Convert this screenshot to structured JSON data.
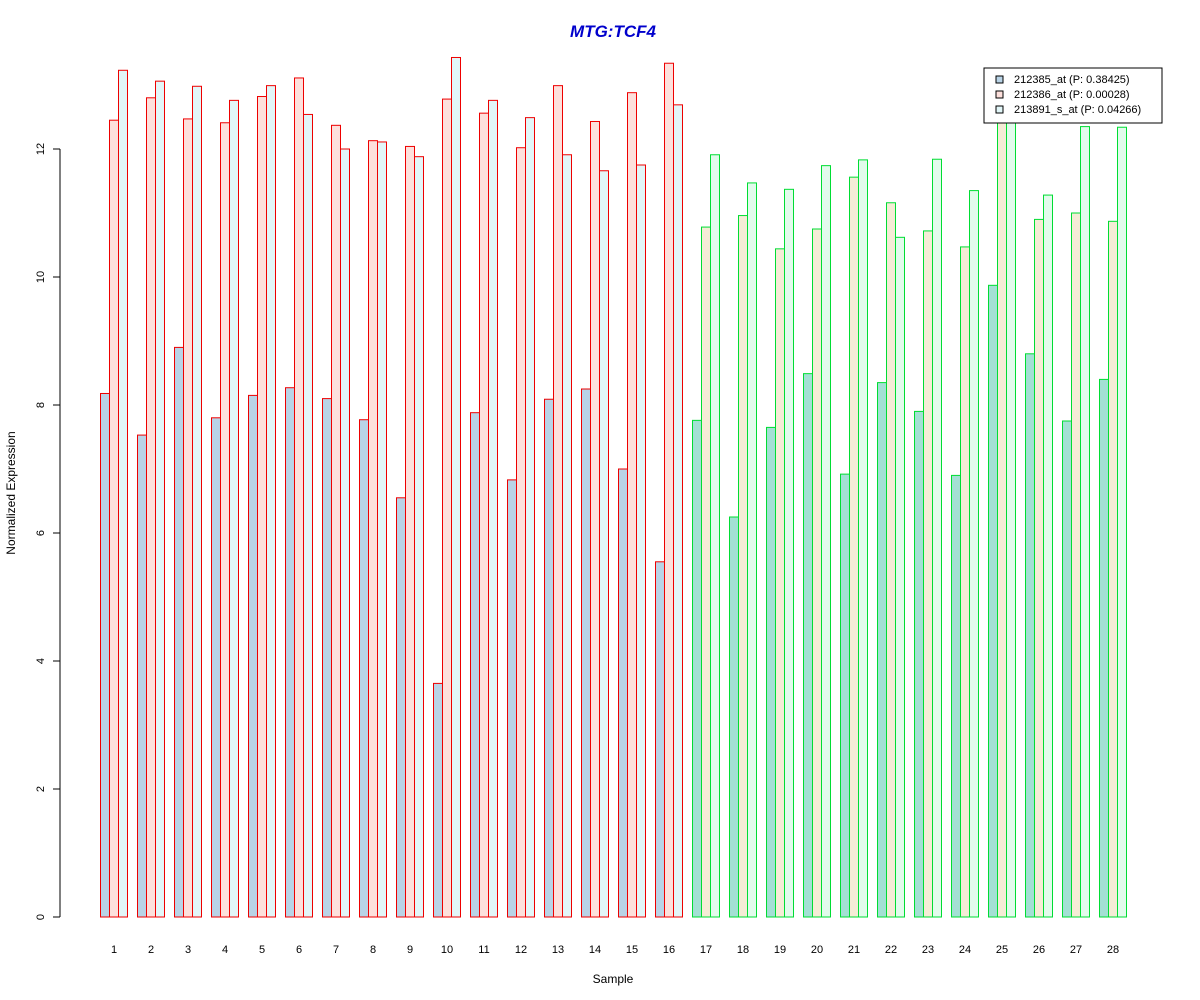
{
  "chart_data": {
    "type": "bar",
    "title": "MTG:TCF4",
    "xlabel": "Sample",
    "ylabel": "Normalized Expression",
    "ylim": [
      0,
      14
    ],
    "yticks": [
      0,
      2,
      4,
      6,
      8,
      10,
      12
    ],
    "grid": false,
    "legend_position": "top-right",
    "categories": [
      "1",
      "2",
      "3",
      "4",
      "5",
      "6",
      "7",
      "8",
      "9",
      "10",
      "11",
      "12",
      "13",
      "14",
      "15",
      "16",
      "17",
      "18",
      "19",
      "20",
      "21",
      "22",
      "23",
      "24",
      "25",
      "26",
      "27",
      "28"
    ],
    "groups": [
      {
        "samples": [
          "1",
          "2",
          "3",
          "4",
          "5",
          "6",
          "7",
          "8",
          "9",
          "10",
          "11",
          "12",
          "13",
          "14",
          "15",
          "16"
        ],
        "border_color": "#ee0000"
      },
      {
        "samples": [
          "17",
          "18",
          "19",
          "20",
          "21",
          "22",
          "23",
          "24",
          "25",
          "26",
          "27",
          "28"
        ],
        "border_color": "#00dd33"
      }
    ],
    "series": [
      {
        "name": "212385_at (P: 0.38425)",
        "fill_group1": "#b9d3e6",
        "fill_group2": "#a3e0d4",
        "values": [
          8.18,
          7.53,
          8.9,
          7.8,
          8.15,
          8.27,
          8.1,
          7.77,
          6.55,
          3.65,
          7.88,
          6.83,
          8.09,
          8.25,
          7.0,
          5.55,
          7.76,
          6.25,
          7.65,
          8.49,
          6.92,
          8.35,
          7.9,
          6.9,
          9.87,
          8.8,
          7.75,
          8.4
        ]
      },
      {
        "name": "212386_at (P: 0.00028)",
        "fill_group1": "#fde0dc",
        "fill_group2": "#f5ecd6",
        "values": [
          12.45,
          12.8,
          12.47,
          12.41,
          12.82,
          13.11,
          12.37,
          12.13,
          12.04,
          12.78,
          12.56,
          12.02,
          12.99,
          12.43,
          12.88,
          13.34,
          10.78,
          10.96,
          10.44,
          10.75,
          11.56,
          11.16,
          10.72,
          10.47,
          12.6,
          10.9,
          11.0,
          10.87
        ]
      },
      {
        "name": "213891_s_at (P: 0.04266)",
        "fill_group1": "#e2f6f8",
        "fill_group2": "#e2fbec",
        "values": [
          13.23,
          13.06,
          12.98,
          12.76,
          12.99,
          12.54,
          12.0,
          12.11,
          11.88,
          13.43,
          12.76,
          12.49,
          11.91,
          11.66,
          11.75,
          12.69,
          11.91,
          11.47,
          11.37,
          11.74,
          11.83,
          10.62,
          11.84,
          11.35,
          12.8,
          11.28,
          12.35,
          12.34
        ]
      }
    ],
    "colors": {
      "title": "#0000cc",
      "legend_swatches": [
        "#b9d3e6",
        "#fde0dc",
        "#e2f6f8"
      ]
    }
  }
}
